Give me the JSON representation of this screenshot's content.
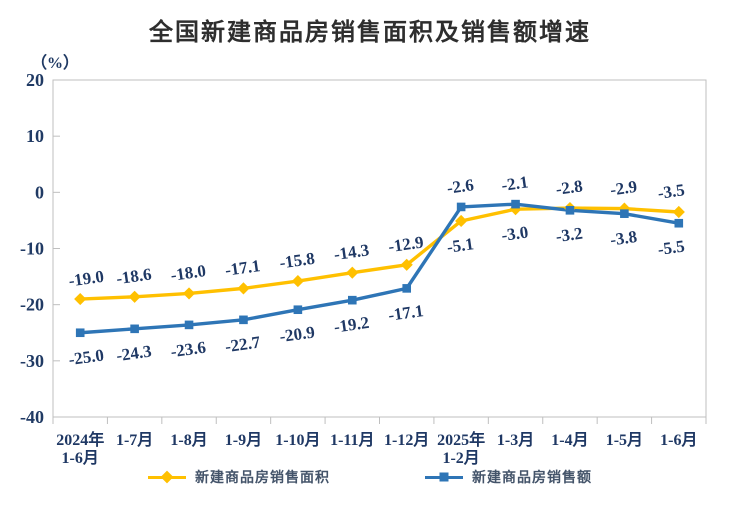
{
  "title": "全国新建商品房销售面积及销售额增速",
  "chart_data": {
    "type": "line",
    "title": "全国新建商品房销售面积及销售额增速",
    "unit_label": "（%）",
    "categories": [
      "2024年\n1-6月",
      "1-7月",
      "1-8月",
      "1-9月",
      "1-10月",
      "1-11月",
      "1-12月",
      "2025年\n1-2月",
      "1-3月",
      "1-4月",
      "1-5月",
      "1-6月"
    ],
    "series": [
      {
        "name": "新建商品房销售面积",
        "marker": "diamond",
        "color": "#FFC000",
        "values": [
          -19.0,
          -18.6,
          -18.0,
          -17.1,
          -15.8,
          -14.3,
          -12.9,
          -5.1,
          -3.0,
          -2.8,
          -2.9,
          -3.5
        ]
      },
      {
        "name": "新建商品房销售额",
        "marker": "square",
        "color": "#2E75B6",
        "values": [
          -25.0,
          -24.3,
          -23.6,
          -22.7,
          -20.9,
          -19.2,
          -17.1,
          -2.6,
          -2.1,
          -3.2,
          -3.8,
          -5.5
        ]
      }
    ],
    "ylim": [
      -40,
      20
    ],
    "y_ticks": [
      20,
      10,
      0,
      -10,
      -20,
      -30,
      -40
    ],
    "grid": false,
    "legend_position": "bottom",
    "colors": {
      "axis": "#BFBFBF",
      "label_text": "#1F3864",
      "title_text": "#2E2E2E",
      "legend_text": "#44546A",
      "series_area": "#FFC000",
      "series_amount": "#2E75B6"
    }
  }
}
